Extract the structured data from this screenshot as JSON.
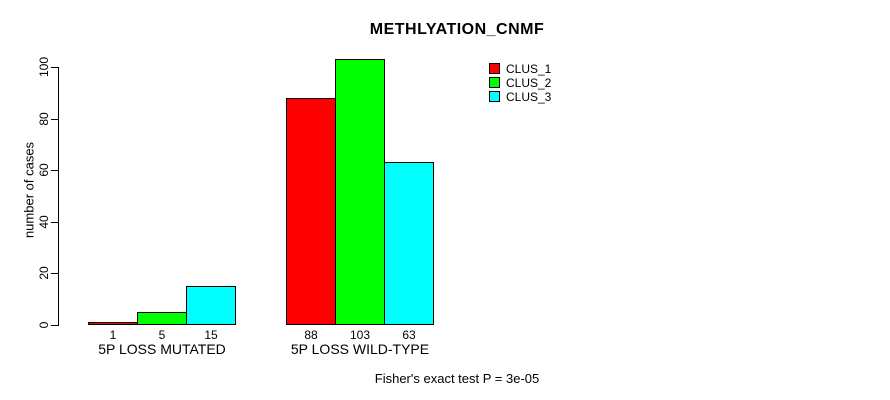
{
  "title": "METHLYATION_CNMF",
  "ylabel": "number of cases",
  "footer": "Fisher's exact test P = 3e-05",
  "chart_data": {
    "type": "bar",
    "title": "METHLYATION_CNMF",
    "xlabel": "",
    "ylabel": "number of cases",
    "categories": [
      "5P LOSS MUTATED",
      "5P LOSS WILD-TYPE"
    ],
    "series": [
      {
        "name": "CLUS_1",
        "color": "#ff0000",
        "values": [
          1,
          88
        ]
      },
      {
        "name": "CLUS_2",
        "color": "#00ff00",
        "values": [
          5,
          103
        ]
      },
      {
        "name": "CLUS_3",
        "color": "#00ffff",
        "values": [
          15,
          63
        ]
      }
    ],
    "bar_value_labels": [
      [
        "1",
        "5",
        "15"
      ],
      [
        "88",
        "103",
        "63"
      ]
    ],
    "ylim": [
      0,
      100
    ],
    "yticks": [
      0,
      20,
      40,
      60,
      80,
      100
    ],
    "grid": false,
    "legend_position": "top-right",
    "bar_border_color": "#000000",
    "annotation": "Fisher's exact test P = 3e-05"
  }
}
